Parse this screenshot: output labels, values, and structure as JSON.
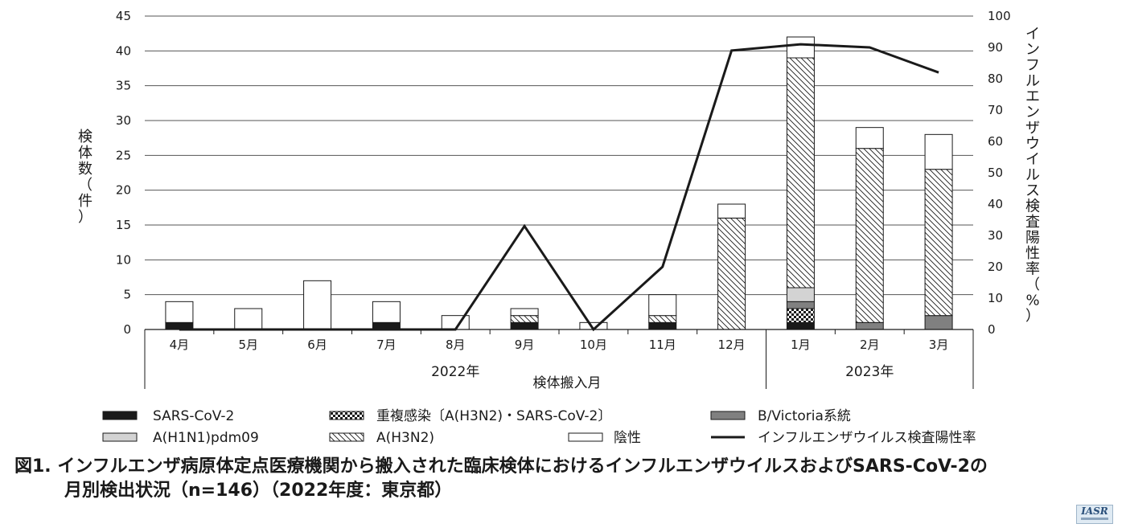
{
  "chart_data": {
    "type": "bar",
    "categories": [
      "4月",
      "5月",
      "6月",
      "7月",
      "8月",
      "9月",
      "10月",
      "11月",
      "12月",
      "1月",
      "2月",
      "3月"
    ],
    "year_groups": [
      {
        "label": "2022年",
        "from": 0,
        "to": 8
      },
      {
        "label": "2023年",
        "from": 9,
        "to": 11
      }
    ],
    "xlabel": "検体搬入月",
    "ylabel_left": "検体数（件）",
    "ylabel_right": "インフルエンザウイルス検査陽性率（%）",
    "ylim_left": [
      0,
      45
    ],
    "yticks_left": [
      0,
      5,
      10,
      15,
      20,
      25,
      30,
      35,
      40,
      45
    ],
    "ylim_right": [
      0,
      100
    ],
    "yticks_right": [
      0,
      10,
      20,
      30,
      40,
      50,
      60,
      70,
      80,
      90,
      100
    ],
    "grid": true,
    "legend_position": "bottom",
    "series": [
      {
        "name": "SARS-CoV-2",
        "key": "sars",
        "values": [
          1,
          0,
          0,
          1,
          0,
          1,
          0,
          1,
          0,
          1,
          0,
          0
        ]
      },
      {
        "name": "重複感染〔A(H3N2)・SARS-CoV-2〕",
        "key": "coinf",
        "values": [
          0,
          0,
          0,
          0,
          0,
          0,
          0,
          0,
          0,
          2,
          0,
          0
        ]
      },
      {
        "name": "B/Victoria系統",
        "key": "bvic",
        "values": [
          0,
          0,
          0,
          0,
          0,
          0,
          0,
          0,
          0,
          1,
          1,
          2
        ]
      },
      {
        "name": "A(H1N1)pdm09",
        "key": "h1n1",
        "values": [
          0,
          0,
          0,
          0,
          0,
          0,
          0,
          0,
          0,
          2,
          0,
          0
        ]
      },
      {
        "name": "A(H3N2)",
        "key": "h3n2",
        "values": [
          0,
          0,
          0,
          0,
          0,
          1,
          0,
          1,
          16,
          33,
          25,
          21
        ]
      },
      {
        "name": "陰性",
        "key": "neg",
        "values": [
          3,
          3,
          7,
          3,
          2,
          1,
          1,
          3,
          2,
          3,
          3,
          5
        ]
      }
    ],
    "line": {
      "name": "インフルエンザウイルス検査陽性率",
      "axis": "right",
      "values": [
        0,
        0,
        0,
        0,
        0,
        33,
        0,
        20,
        89,
        91,
        90,
        82
      ]
    },
    "colors": {
      "sars": "#1a1a1a",
      "bvic": "#808080",
      "h1n1": "#d3d3d3",
      "neg": "#ffffff",
      "line": "#1a1a1a",
      "grid": "#555555"
    }
  },
  "legend_rows": [
    [
      "sars",
      "coinf",
      "bvic"
    ],
    [
      "h1n1",
      "h3n2",
      "neg",
      "line"
    ]
  ],
  "caption": {
    "line1": "図1. インフルエンザ病原体定点医療機関から搬入された臨床検体におけるインフルエンザウイルスおよびSARS-CoV-2の",
    "line2": "月別検出状況（n=146）（2022年度：東京都）"
  },
  "logo": {
    "text": "IASR"
  }
}
